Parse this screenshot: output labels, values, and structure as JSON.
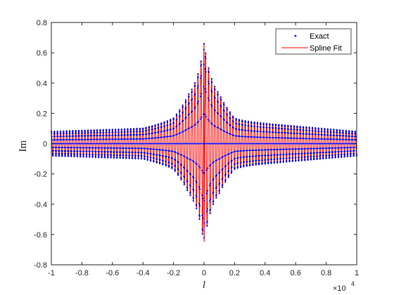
{
  "chart_data": {
    "type": "line",
    "xlabel": "l",
    "ylabel": "Im",
    "x_exponent_label": "×10",
    "x_exponent_power": "4",
    "xlim": [
      -10000,
      10000
    ],
    "ylim": [
      -0.8,
      0.8
    ],
    "x_ticks": [
      -1,
      -0.8,
      -0.6,
      -0.4,
      -0.2,
      0,
      0.2,
      0.4,
      0.6,
      0.8,
      1
    ],
    "x_tick_labels": [
      "-1",
      "-0.8",
      "-0.6",
      "-0.4",
      "-0.2",
      "0",
      "0.2",
      "0.4",
      "0.6",
      "0.8",
      "1"
    ],
    "y_ticks": [
      -0.8,
      -0.6,
      -0.4,
      -0.2,
      0,
      0.2,
      0.4,
      0.6,
      0.8
    ],
    "y_tick_labels": [
      "-0.8",
      "-0.6",
      "-0.4",
      "-0.2",
      "0",
      "0.2",
      "0.4",
      "0.6",
      "0.8"
    ],
    "grid": false,
    "legend_position": "top-right",
    "series": [
      {
        "name": "Exact",
        "style": "markers",
        "color": "#0000ff"
      },
      {
        "name": "Spline Fit",
        "style": "line",
        "color": "#ff0000"
      }
    ],
    "peak": {
      "x": 0,
      "y": 0.66
    },
    "trough": {
      "x": 0,
      "y": -0.66
    },
    "envelope_samples": [
      {
        "x": -10000,
        "amplitude": 0.08
      },
      {
        "x": -4000,
        "amplitude": 0.1
      },
      {
        "x": -2000,
        "amplitude": 0.15
      },
      {
        "x": -1000,
        "amplitude": 0.25
      },
      {
        "x": 1000,
        "amplitude": 0.25
      },
      {
        "x": 2000,
        "amplitude": 0.15
      },
      {
        "x": 10000,
        "amplitude": 0.08
      }
    ],
    "oscillation_cycles_per_side": 50
  }
}
